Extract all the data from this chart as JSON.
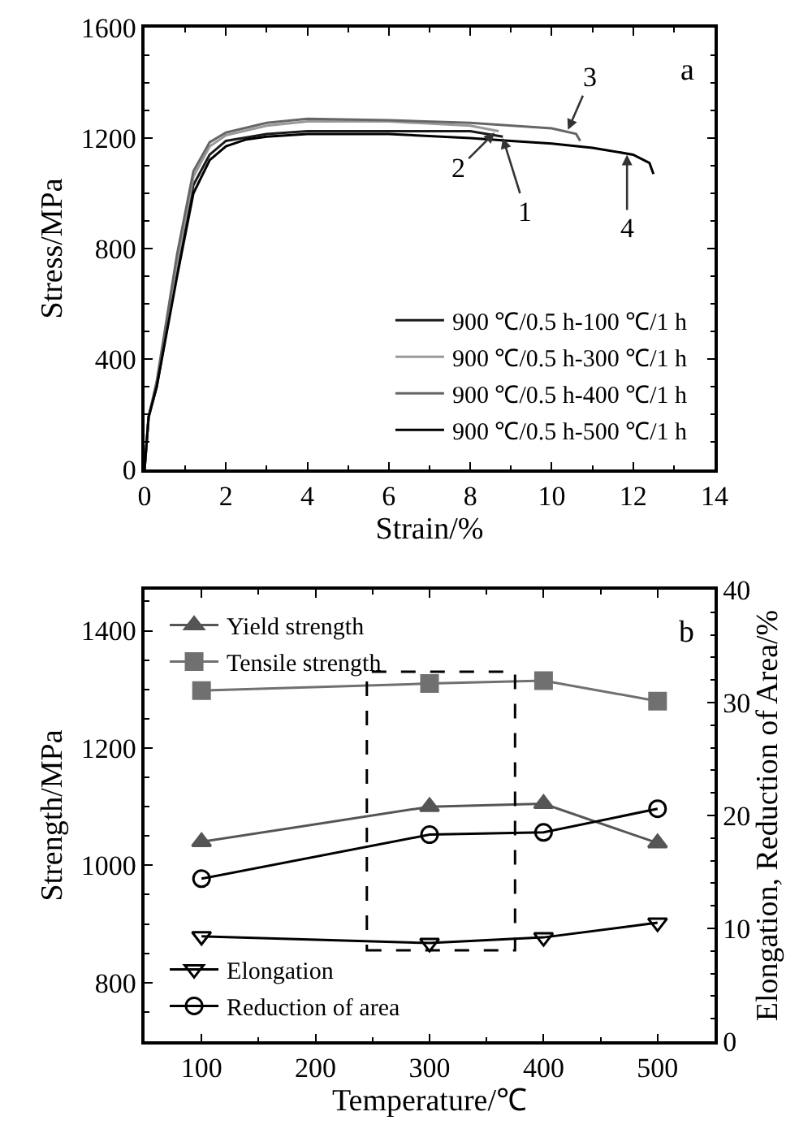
{
  "chart_data": [
    {
      "type": "line",
      "xlabel": "Strain/%",
      "ylabel": "Stress/MPa",
      "xlim": [
        0,
        14
      ],
      "xticks": [
        0,
        2,
        4,
        6,
        8,
        10,
        12,
        14
      ],
      "ylim": [
        0,
        1600
      ],
      "yticks": [
        0,
        400,
        800,
        1200,
        1600
      ],
      "legend": "bottom right",
      "marker": "none",
      "line_style": "solid",
      "annotations": [
        "a",
        {
          "text": "1",
          "x": 8.8,
          "y": 1200
        },
        {
          "text": "2",
          "x": 8.6,
          "y": 1220
        },
        {
          "text": "3",
          "x": 10.4,
          "y": 1230
        },
        {
          "text": "4",
          "x": 11.85,
          "y": 1140
        }
      ],
      "series": [
        {
          "name": "900 ℃/0.5 h-100 ℃/1 h",
          "color": "#1a1a1a",
          "x": [
            0,
            0.1,
            0.3,
            0.8,
            1.2,
            1.6,
            2,
            3,
            4,
            6,
            8,
            8.8
          ],
          "values": [
            0,
            190,
            300,
            720,
            1030,
            1140,
            1190,
            1215,
            1225,
            1225,
            1225,
            1205
          ]
        },
        {
          "name": "900 ℃/0.5 h-300 ℃/1 h",
          "color": "#999999",
          "x": [
            0,
            0.1,
            0.3,
            0.8,
            1.2,
            1.6,
            2,
            3,
            4,
            6,
            8,
            8.7
          ],
          "values": [
            0,
            190,
            310,
            750,
            1060,
            1170,
            1210,
            1245,
            1260,
            1260,
            1245,
            1225
          ]
        },
        {
          "name": "900 ℃/0.5 h-400 ℃/1 h",
          "color": "#666666",
          "x": [
            0,
            0.1,
            0.3,
            0.8,
            1.2,
            1.6,
            2,
            3,
            4,
            6,
            8,
            10,
            10.6,
            10.7
          ],
          "values": [
            0,
            190,
            320,
            780,
            1080,
            1185,
            1220,
            1255,
            1270,
            1265,
            1255,
            1235,
            1215,
            1190
          ]
        },
        {
          "name": "900 ℃/0.5 h-500 ℃/1 h",
          "color": "#000000",
          "x": [
            0,
            0.1,
            0.3,
            0.8,
            1.2,
            1.6,
            2,
            2.5,
            3,
            4,
            6,
            8,
            9,
            10,
            11,
            12,
            12.4,
            12.5
          ],
          "values": [
            0,
            190,
            300,
            700,
            1000,
            1120,
            1170,
            1195,
            1205,
            1215,
            1215,
            1200,
            1190,
            1180,
            1165,
            1140,
            1110,
            1070
          ]
        }
      ]
    },
    {
      "type": "line",
      "xlabel": "Temperature/℃",
      "ylabel": "Strength/MPa",
      "y2label": "Elongation, Reduction of Area/%",
      "x": [
        100,
        300,
        400,
        500
      ],
      "xlim": [
        50,
        550
      ],
      "xticks": [
        100,
        200,
        300,
        400,
        500
      ],
      "ylim": [
        700,
        1470
      ],
      "yticks": [
        800,
        1000,
        1200,
        1400
      ],
      "y2lim": [
        0,
        40
      ],
      "y2ticks": [
        0,
        10,
        20,
        30,
        40
      ],
      "legend": "left",
      "line_style": "solid",
      "annotations": [
        "b"
      ],
      "series": [
        {
          "name": "Yield strength",
          "color": "#555555",
          "marker": "triangle",
          "values": [
            1040,
            1100,
            1105,
            1038
          ]
        },
        {
          "name": "Tensile strength",
          "color": "#707070",
          "marker": "square",
          "values": [
            1298,
            1310,
            1315,
            1280
          ]
        },
        {
          "name": "Elongation",
          "color": "#000000",
          "marker": "triangle-down",
          "axis": "y2",
          "values": [
            9.3,
            8.7,
            9.2,
            10.5
          ]
        },
        {
          "name": "Reduction of area",
          "color": "#000000",
          "marker": "circle-open",
          "axis": "y2",
          "values": [
            14.4,
            18.3,
            18.5,
            20.6
          ]
        }
      ]
    }
  ]
}
